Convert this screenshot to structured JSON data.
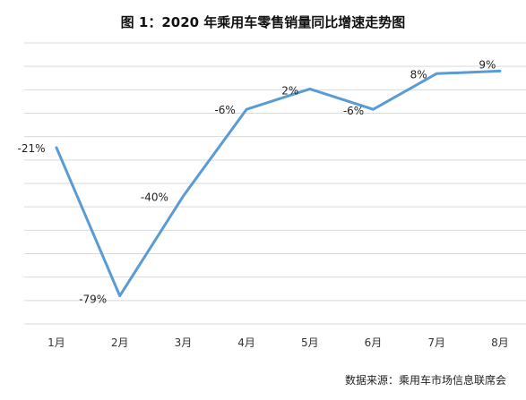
{
  "chart_data": {
    "type": "line",
    "title": "图 1：2020 年乘用车零售销量同比增速走势图",
    "categories": [
      "1月",
      "2月",
      "3月",
      "4月",
      "5月",
      "6月",
      "7月",
      "8月"
    ],
    "values": [
      -21,
      -79,
      -40,
      -6,
      2,
      -6,
      8,
      9
    ],
    "data_labels": [
      "-21%",
      "-79%",
      "-40%",
      "-6%",
      "2%",
      "-6%",
      "8%",
      "9%"
    ],
    "ylim": [
      -90,
      20
    ],
    "grid": true,
    "legend": "none",
    "line_color": "#5b9bd5"
  },
  "footer": {
    "source": "数据来源：乘用车市场信息联席会"
  }
}
